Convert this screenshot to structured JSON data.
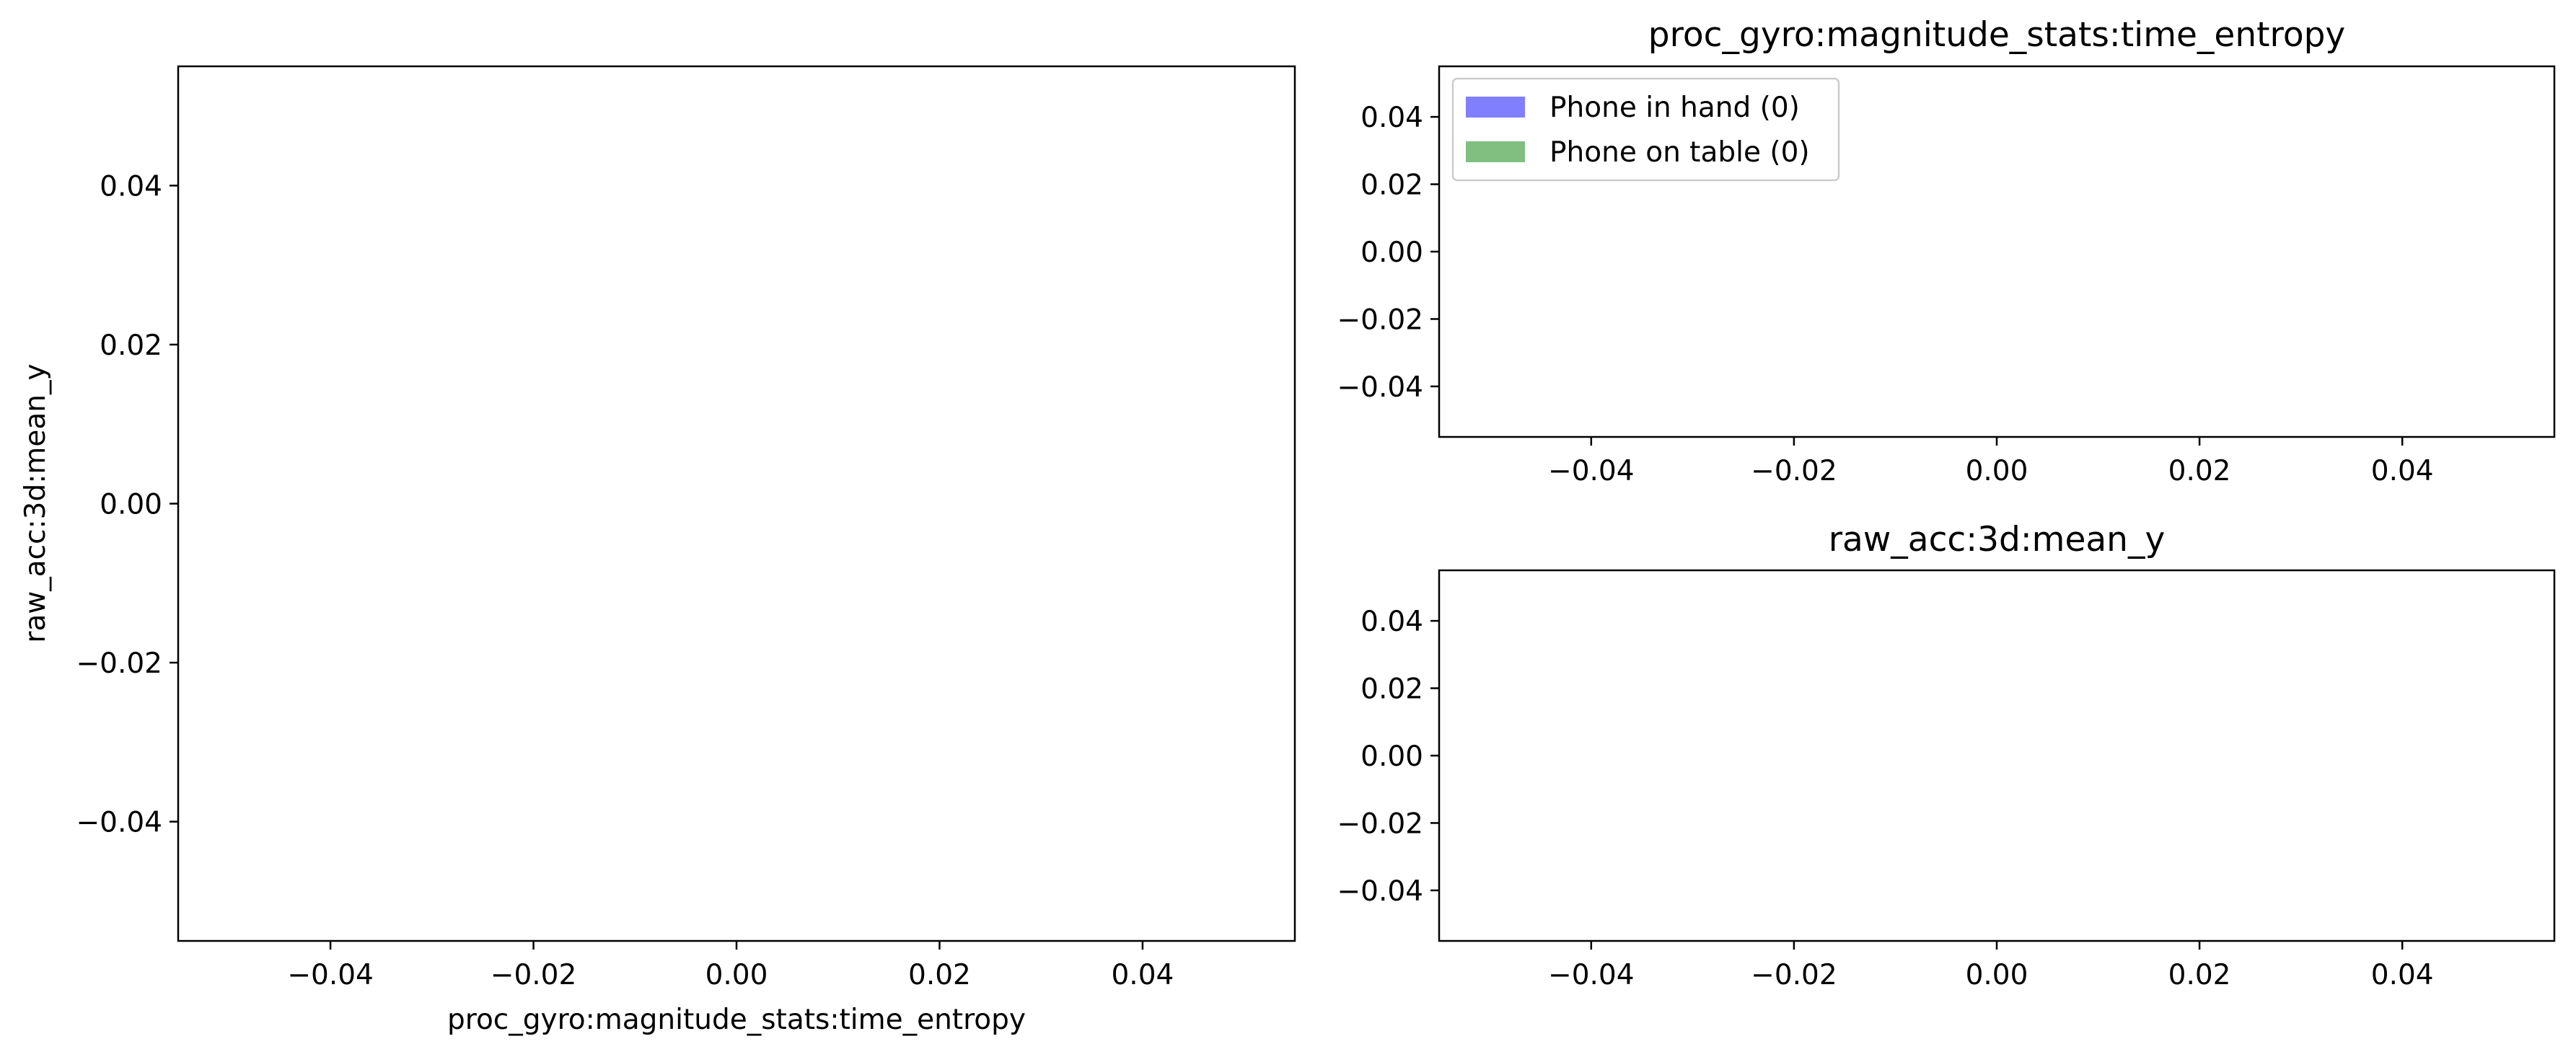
{
  "chart_data": [
    {
      "type": "scatter",
      "title": "",
      "xlabel": "proc_gyro:magnitude_stats:time_entropy",
      "ylabel": "raw_acc:3d:mean_y",
      "xlim": [
        -0.055,
        0.055
      ],
      "ylim": [
        -0.055,
        0.055
      ],
      "xticks": [
        -0.04,
        -0.02,
        0.0,
        0.02,
        0.04
      ],
      "yticks": [
        -0.04,
        -0.02,
        0.0,
        0.02,
        0.04
      ],
      "xtick_labels": [
        "−0.04",
        "−0.02",
        "0.00",
        "0.02",
        "0.04"
      ],
      "ytick_labels": [
        "−0.04",
        "−0.02",
        "0.00",
        "0.02",
        "0.04"
      ],
      "grid": false,
      "series": []
    },
    {
      "type": "bar",
      "title": "proc_gyro:magnitude_stats:time_entropy",
      "xlabel": "",
      "ylabel": "",
      "xlim": [
        -0.055,
        0.055
      ],
      "ylim": [
        -0.055,
        0.055
      ],
      "xticks": [
        -0.04,
        -0.02,
        0.0,
        0.02,
        0.04
      ],
      "yticks": [
        -0.04,
        -0.02,
        0.0,
        0.02,
        0.04
      ],
      "xtick_labels": [
        "−0.04",
        "−0.02",
        "0.00",
        "0.02",
        "0.04"
      ],
      "ytick_labels": [
        "−0.04",
        "−0.02",
        "0.00",
        "0.02",
        "0.04"
      ],
      "grid": false,
      "legend_position": "top-left",
      "series": [
        {
          "name": "Phone in hand (0)",
          "color": "#8080ff",
          "values": []
        },
        {
          "name": "Phone on table (0)",
          "color": "#80bf80",
          "values": []
        }
      ]
    },
    {
      "type": "bar",
      "title": "raw_acc:3d:mean_y",
      "xlabel": "",
      "ylabel": "",
      "xlim": [
        -0.055,
        0.055
      ],
      "ylim": [
        -0.055,
        0.055
      ],
      "xticks": [
        -0.04,
        -0.02,
        0.0,
        0.02,
        0.04
      ],
      "yticks": [
        -0.04,
        -0.02,
        0.0,
        0.02,
        0.04
      ],
      "xtick_labels": [
        "−0.04",
        "−0.02",
        "0.00",
        "0.02",
        "0.04"
      ],
      "ytick_labels": [
        "−0.04",
        "−0.02",
        "0.00",
        "0.02",
        "0.04"
      ],
      "grid": false,
      "series": []
    }
  ]
}
